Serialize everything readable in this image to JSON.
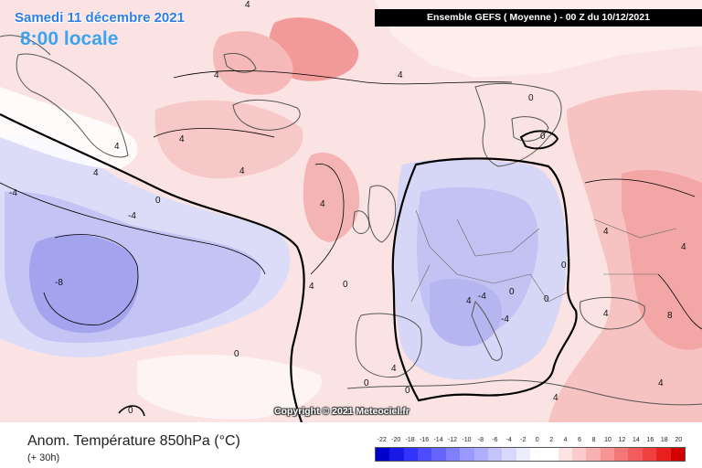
{
  "header": {
    "date": "Samedi 11 décembre 2021",
    "time": "8:00 locale",
    "model_run": "Ensemble GEFS  ( Moyenne )  -  00 Z du 10/12/2021"
  },
  "map": {
    "copyright": "Copyright © 2021 Meteociel.fr",
    "contour_labels": [
      "4",
      "4",
      "4",
      "4",
      "4",
      "4",
      "0",
      "0",
      "0",
      "0",
      "-4",
      "-4",
      "-8",
      "4",
      "0",
      "4",
      "0",
      "4",
      "4",
      "0",
      "0",
      "4",
      "4",
      "0",
      "4",
      "-4",
      "-4",
      "8",
      "4",
      "4",
      "0",
      "0",
      "4",
      "4"
    ]
  },
  "footer": {
    "parameter": "Anom. Température 850hPa (°C)",
    "lead_time": "(+ 30h)"
  },
  "legend": {
    "ticks": [
      "-22",
      "-20",
      "-18",
      "-16",
      "-14",
      "-12",
      "-10",
      "-8",
      "-6",
      "-4",
      "-2",
      "0",
      "2",
      "4",
      "6",
      "8",
      "10",
      "12",
      "14",
      "16",
      "18",
      "20"
    ],
    "colors": [
      "#0000cc",
      "#1a1ae6",
      "#3333ff",
      "#4d4dff",
      "#6666ff",
      "#7f7fff",
      "#9999ff",
      "#aeaefa",
      "#c4c4fb",
      "#d8d8fc",
      "#ececfd",
      "#ffffff",
      "#ffffff",
      "#fde4e4",
      "#fbcaca",
      "#f9b0b0",
      "#f79494",
      "#f57878",
      "#f35c5c",
      "#f04040",
      "#e82020",
      "#d40000"
    ]
  }
}
